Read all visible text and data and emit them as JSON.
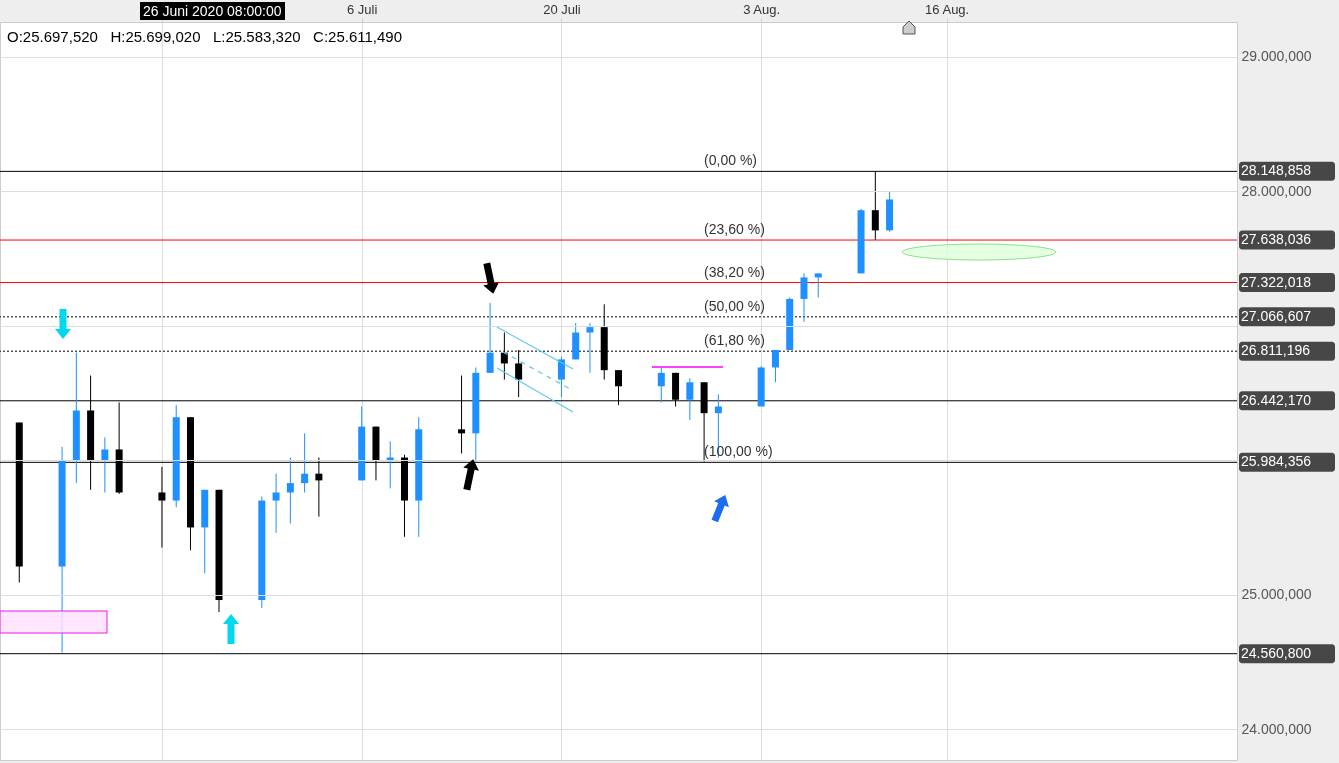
{
  "chart_data": {
    "type": "candlestick",
    "x": [
      "2020-06-12",
      "2020-06-15",
      "2020-06-16",
      "2020-06-17",
      "2020-06-18",
      "2020-06-19",
      "2020-06-22",
      "2020-06-23",
      "2020-06-24",
      "2020-06-25",
      "2020-06-26",
      "2020-06-29",
      "2020-06-30",
      "2020-07-01",
      "2020-07-02",
      "2020-07-03",
      "2020-07-06",
      "2020-07-07",
      "2020-07-08",
      "2020-07-09",
      "2020-07-10",
      "2020-07-13",
      "2020-07-14",
      "2020-07-15",
      "2020-07-16",
      "2020-07-17",
      "2020-07-20",
      "2020-07-21",
      "2020-07-22",
      "2020-07-23",
      "2020-07-24",
      "2020-07-27",
      "2020-07-28",
      "2020-07-29",
      "2020-07-30",
      "2020-07-31",
      "2020-08-03",
      "2020-08-04",
      "2020-08-05",
      "2020-08-06",
      "2020-08-07",
      "2020-08-10",
      "2020-08-11",
      "2020-08-12"
    ],
    "ohlc": [
      [
        26280,
        26280,
        25090,
        25210
      ],
      [
        25210,
        26100,
        24570,
        26000
      ],
      [
        26000,
        26800,
        25830,
        26370
      ],
      [
        26370,
        26630,
        25780,
        26000
      ],
      [
        26000,
        26170,
        25760,
        26080
      ],
      [
        26080,
        26430,
        25750,
        25760
      ],
      [
        25760,
        25950,
        25350,
        25700
      ],
      [
        25700,
        26410,
        25650,
        26320
      ],
      [
        26320,
        26320,
        25330,
        25500
      ],
      [
        25500,
        25780,
        25160,
        25780
      ],
      [
        25780,
        25780,
        24870,
        24960
      ],
      [
        24960,
        25730,
        24900,
        25700
      ],
      [
        25700,
        25900,
        25460,
        25760
      ],
      [
        25760,
        26020,
        25530,
        25830
      ],
      [
        25830,
        26200,
        25760,
        25900
      ],
      [
        25900,
        26020,
        25580,
        25850
      ],
      [
        25850,
        26400,
        25850,
        26250
      ],
      [
        26250,
        26250,
        25850,
        26000
      ],
      [
        26000,
        26140,
        25790,
        26020
      ],
      [
        26020,
        26040,
        25430,
        25700
      ],
      [
        25700,
        26320,
        25430,
        26230
      ],
      [
        26230,
        26630,
        26050,
        26200
      ],
      [
        26200,
        26690,
        25990,
        26650
      ],
      [
        26650,
        27170,
        26650,
        26800
      ],
      [
        26800,
        26950,
        26600,
        26720
      ],
      [
        26720,
        26820,
        26470,
        26600
      ],
      [
        26600,
        26770,
        26470,
        26750
      ],
      [
        26750,
        27020,
        26750,
        26950
      ],
      [
        26950,
        27020,
        26650,
        26990
      ],
      [
        26990,
        27160,
        26600,
        26670
      ],
      [
        26670,
        26670,
        26410,
        26550
      ],
      [
        26550,
        26690,
        26430,
        26650
      ],
      [
        26650,
        26650,
        26400,
        26450
      ],
      [
        26450,
        26610,
        26300,
        26580
      ],
      [
        26580,
        26580,
        25990,
        26350
      ],
      [
        26350,
        26490,
        26020,
        26400
      ],
      [
        26400,
        26700,
        26400,
        26690
      ],
      [
        26690,
        26820,
        26580,
        26820
      ],
      [
        26820,
        27210,
        26820,
        27200
      ],
      [
        27200,
        27390,
        27030,
        27360
      ],
      [
        27360,
        27390,
        27210,
        27390
      ],
      [
        27390,
        27870,
        27390,
        27860
      ],
      [
        27860,
        28150,
        27640,
        27710
      ],
      [
        27710,
        28000,
        27700,
        27940
      ]
    ],
    "colors": [
      "#000000",
      "#1e90ff",
      "#1e90ff",
      "#000000",
      "#1e90ff",
      "#000000",
      "#000000",
      "#1e90ff",
      "#000000",
      "#1e90ff",
      "#000000",
      "#1e90ff",
      "#1e90ff",
      "#1e90ff",
      "#1e90ff",
      "#000000",
      "#1e90ff",
      "#000000",
      "#1e90ff",
      "#000000",
      "#1e90ff",
      "#000000",
      "#1e90ff",
      "#1e90ff",
      "#000000",
      "#000000",
      "#1e90ff",
      "#1e90ff",
      "#1e90ff",
      "#000000",
      "#000000",
      "#1e90ff",
      "#000000",
      "#1e90ff",
      "#000000",
      "#1e90ff",
      "#1e90ff",
      "#1e90ff",
      "#1e90ff",
      "#1e90ff",
      "#1e90ff",
      "#1e90ff",
      "#000000",
      "#1e90ff"
    ],
    "xlim": [
      "2020-06-11",
      "2020-09-05"
    ],
    "xticks": [
      {
        "value": "2020-06-22",
        "label": null
      },
      {
        "value": "2020-07-06",
        "label": "6 Juli"
      },
      {
        "value": "2020-07-20",
        "label": "20 Juli"
      },
      {
        "value": "2020-08-03",
        "label": "3 Aug."
      },
      {
        "value": "2020-08-16",
        "label": "16 Aug."
      }
    ],
    "ylim": [
      23770,
      29260
    ],
    "yticks": [
      {
        "value": 24000,
        "label": "24.000,000"
      },
      {
        "value": 25000,
        "label": "25.000,000"
      },
      {
        "value": 26000,
        "label": null
      },
      {
        "value": 27000,
        "label": null
      },
      {
        "value": 28000,
        "label": "28.000,000"
      },
      {
        "value": 29000,
        "label": "29.000,000"
      }
    ],
    "grid": true,
    "ref_lines": [
      {
        "axis": "y",
        "value": 28148.858,
        "label": "28.148,858",
        "color": "#000000",
        "line_style": "solid"
      },
      {
        "axis": "y",
        "value": 27638.036,
        "label": "27.638,036",
        "color": "#ff0000",
        "line_style": "solid"
      },
      {
        "axis": "y",
        "value": 27322.018,
        "label": "27.322,018",
        "color": "#ff0000",
        "line_style": "solid"
      },
      {
        "axis": "y",
        "value": 27066.607,
        "label": "27.066,607",
        "color": "#000000",
        "line_style": "dotted"
      },
      {
        "axis": "y",
        "value": 26811.196,
        "label": "26.811,196",
        "color": "#000000",
        "line_style": "dotted"
      },
      {
        "axis": "y",
        "value": 26442.17,
        "label": "26.442,170",
        "color": "#000000",
        "line_style": "solid"
      },
      {
        "axis": "y",
        "value": 25984.356,
        "label": "25.984,356",
        "color": "#000000",
        "line_style": "solid"
      },
      {
        "axis": "y",
        "value": 24560.8,
        "label": "24.560,800",
        "color": "#000000",
        "line_style": "solid"
      }
    ],
    "annotations": [
      "26 Juni 2020 08:00:00",
      "O:25.697,520   H:25.699,020   L:25.583,320   C:25.611,490",
      {
        "text": "(0,00 %)",
        "x": "2020-07-30",
        "y": 28148.858
      },
      {
        "text": "(23,60 %)",
        "x": "2020-07-30",
        "y": 27638.036
      },
      {
        "text": "(38,20 %)",
        "x": "2020-07-30",
        "y": 27322.018
      },
      {
        "text": "(50,00 %)",
        "x": "2020-07-30",
        "y": 27066.607
      },
      {
        "text": "(61,80 %)",
        "x": "2020-07-30",
        "y": 26811.196
      },
      {
        "text": "(100,00 %)",
        "x": "2020-07-30",
        "y": 25984.356
      }
    ]
  }
}
